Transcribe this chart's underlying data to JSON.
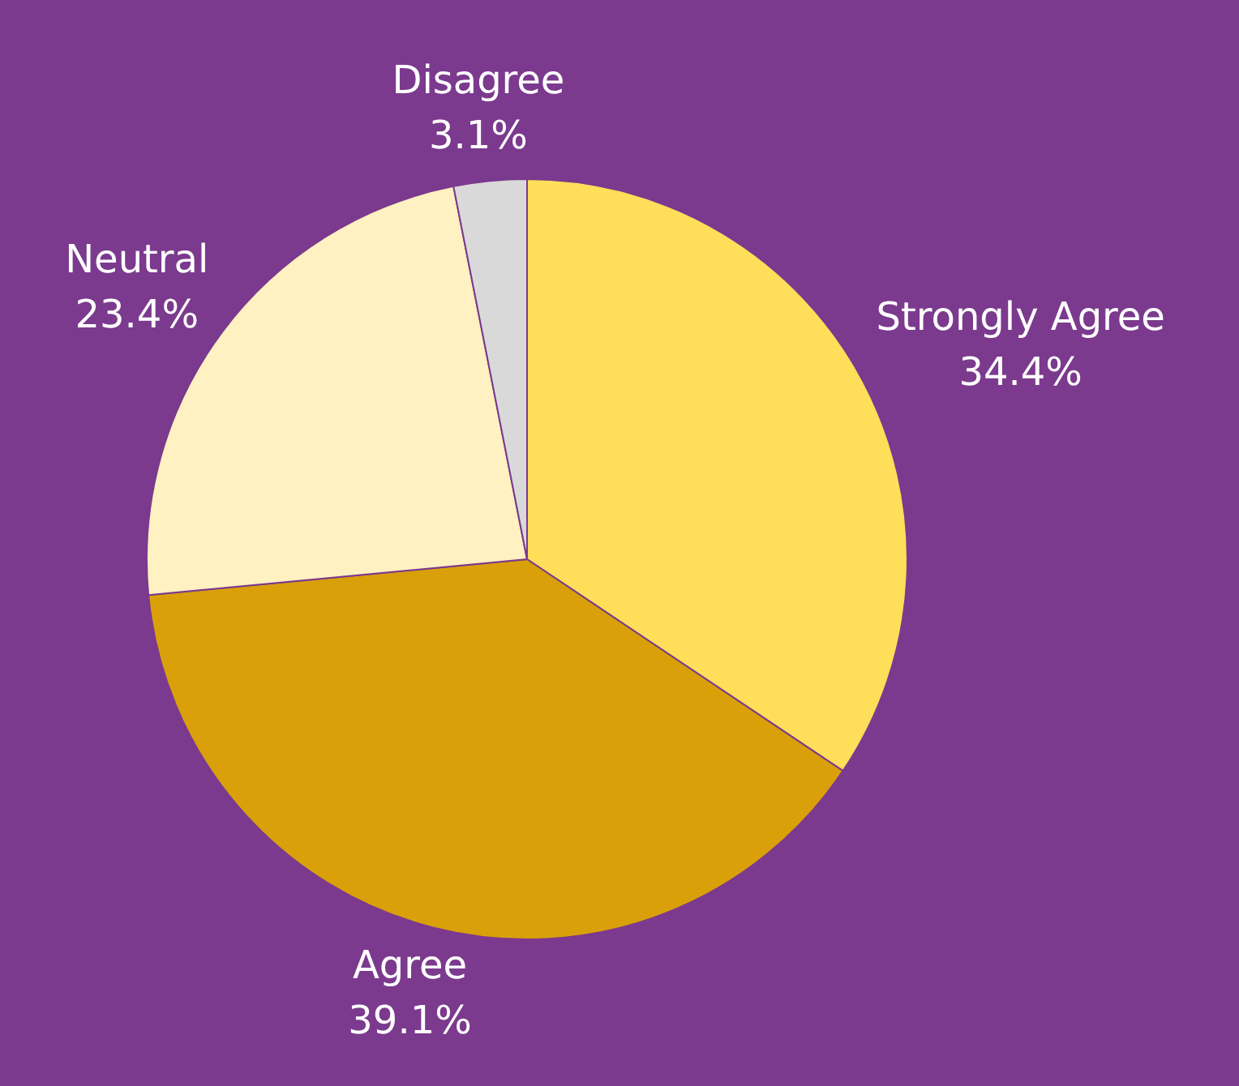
{
  "chart_data": {
    "type": "pie",
    "categories": [
      "Strongly Agree",
      "Agree",
      "Neutral",
      "Disagree"
    ],
    "values": [
      34.4,
      39.1,
      23.4,
      3.1
    ],
    "colors": [
      "#ffde59",
      "#d9a00a",
      "#fff1c1",
      "#d9d9d9"
    ],
    "value_labels": [
      "34.4%",
      "39.1%",
      "23.4%",
      "3.1%"
    ],
    "legend": false
  }
}
